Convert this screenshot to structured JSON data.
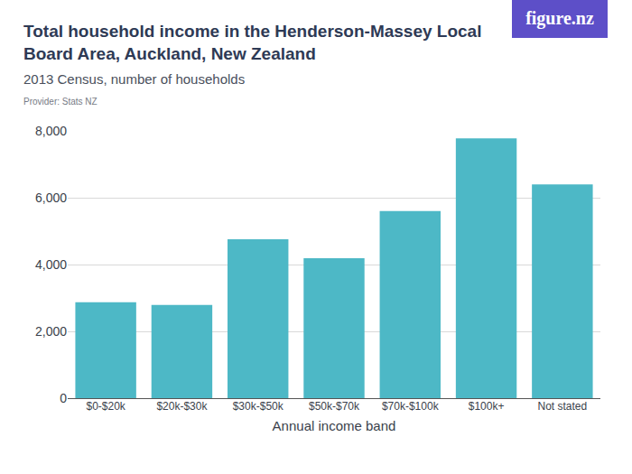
{
  "chart_data": {
    "type": "bar",
    "title": "Total household income in the Henderson-Massey Local Board Area, Auckland, New Zealand",
    "subtitle": "2013 Census, number of households",
    "provider": "Provider: Stats NZ",
    "logo": "figure.nz",
    "x_label": "Annual income band",
    "categories": [
      "$0-$20k",
      "$20k-$30k",
      "$30k-$50k",
      "$50k-$70k",
      "$70k-$100k",
      "$100k+",
      "Not stated"
    ],
    "values": [
      2870,
      2790,
      4760,
      4190,
      5600,
      7780,
      6400
    ],
    "color": "#4db8c6",
    "ylim": [
      0,
      8000
    ],
    "yticks": [
      0,
      {
        "value": 2000,
        "label": "2,000"
      },
      {
        "value": 4000,
        "label": "4,000"
      },
      {
        "value": 6000,
        "label": "6,000"
      },
      {
        "value": 8000,
        "label": "8,000"
      }
    ],
    "grid": true
  }
}
